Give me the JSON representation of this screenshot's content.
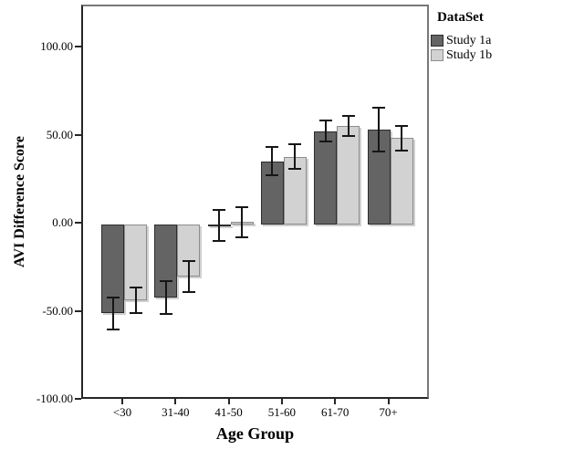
{
  "figure": {
    "background_color": "#ffffff",
    "frame_color": "#787878",
    "axis_color": "#262626"
  },
  "legend": {
    "title": "DataSet",
    "entries": [
      {
        "label": "Study 1a",
        "swatch_color": "#646464",
        "swatch_border": "#2d2d2d"
      },
      {
        "label": "Study 1b",
        "swatch_color": "#d2d2d2",
        "swatch_border": "#8c8c8c"
      }
    ]
  },
  "chart_data": {
    "type": "bar",
    "title": "",
    "xlabel": "Age Group",
    "ylabel": "AVI Difference Score",
    "categories": [
      "<30",
      "31-40",
      "41-50",
      "51-60",
      "61-70",
      "70+"
    ],
    "series": [
      {
        "name": "Study 1a",
        "color": "#646464",
        "border_color": "#2d2d2d",
        "values": [
          -50.5,
          -41.5,
          -0.5,
          36,
          53,
          54
        ],
        "errors": [
          9,
          9.5,
          9,
          8,
          6,
          12.5
        ]
      },
      {
        "name": "Study 1b",
        "color": "#d2d2d2",
        "border_color": "#8c8c8c",
        "values": [
          -43,
          -29.5,
          1.5,
          38.5,
          56,
          49
        ],
        "errors": [
          7.5,
          9,
          8.5,
          7,
          5.5,
          7
        ]
      }
    ],
    "ylim": [
      -100,
      100
    ],
    "yticks": [
      100,
      50,
      0,
      -50,
      -100
    ],
    "ytick_labels": [
      "100.00",
      "50.00",
      "0.00",
      "-50.00",
      "-100.00"
    ],
    "error_bars": true,
    "grid": false,
    "legend_position": "top-right"
  }
}
